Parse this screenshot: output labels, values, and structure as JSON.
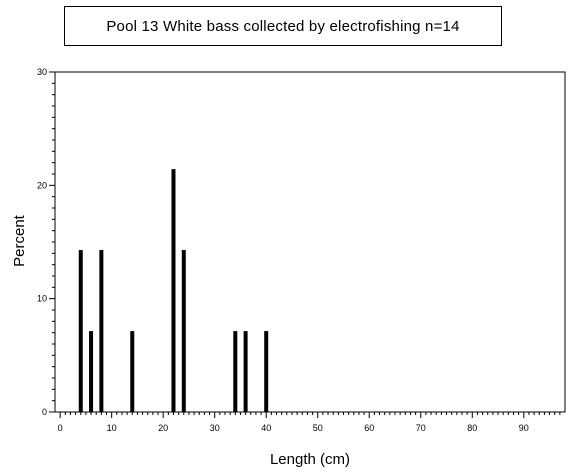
{
  "chart_data": {
    "type": "bar",
    "title": "Pool 13 White bass collected by electrofishing n=14",
    "xlabel": "Length (cm)",
    "ylabel": "Percent",
    "x": [
      4,
      6,
      8,
      14,
      22,
      24,
      34,
      36,
      40
    ],
    "values": [
      14.29,
      7.14,
      14.29,
      7.14,
      21.43,
      14.29,
      7.14,
      7.14,
      7.14
    ],
    "xlim": [
      -1,
      98
    ],
    "ylim": [
      0,
      30
    ],
    "x_ticks": [
      "0",
      "10",
      "20",
      "30",
      "40",
      "50",
      "60",
      "70",
      "80",
      "90"
    ],
    "y_ticks": [
      "0",
      "10",
      "20",
      "30"
    ],
    "bar_color": "#000000",
    "grid": false,
    "legend": "none"
  }
}
